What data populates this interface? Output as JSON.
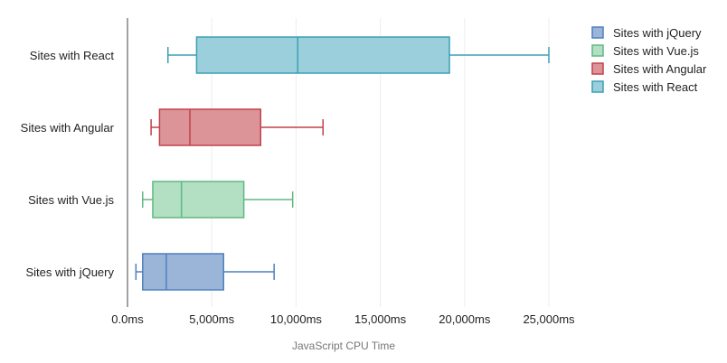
{
  "chart_data": {
    "type": "boxplot",
    "orientation": "horizontal",
    "xlabel": "JavaScript CPU Time",
    "x_ticks": [
      "0.0ms",
      "5,000ms",
      "10,000ms",
      "15,000ms",
      "20,000ms",
      "25,000ms"
    ],
    "x_tick_values": [
      0,
      5000,
      10000,
      15000,
      20000,
      25000
    ],
    "xlim": [
      0,
      25000
    ],
    "grid": true,
    "legend_position": "top-right",
    "series": [
      {
        "name": "Sites with jQuery",
        "label": "Sites with jQuery",
        "color": "#4f7fbf",
        "fill": "#9bb5d8",
        "min": 500,
        "q1": 900,
        "median": 2300,
        "q3": 5700,
        "max": 8700
      },
      {
        "name": "Sites with Vue.js",
        "label": "Sites with Vue.js",
        "color": "#5fb882",
        "fill": "#b3dfc3",
        "min": 900,
        "q1": 1500,
        "median": 3200,
        "q3": 6900,
        "max": 9800
      },
      {
        "name": "Sites with Angular",
        "label": "Sites with Angular",
        "color": "#c2414a",
        "fill": "#dd9499",
        "min": 1400,
        "q1": 1900,
        "median": 3700,
        "q3": 7900,
        "max": 11600
      },
      {
        "name": "Sites with React",
        "label": "Sites with React",
        "color": "#3a9fb4",
        "fill": "#9ccfdc",
        "min": 2400,
        "q1": 4100,
        "median": 10100,
        "q3": 19100,
        "max": 25000
      }
    ]
  }
}
